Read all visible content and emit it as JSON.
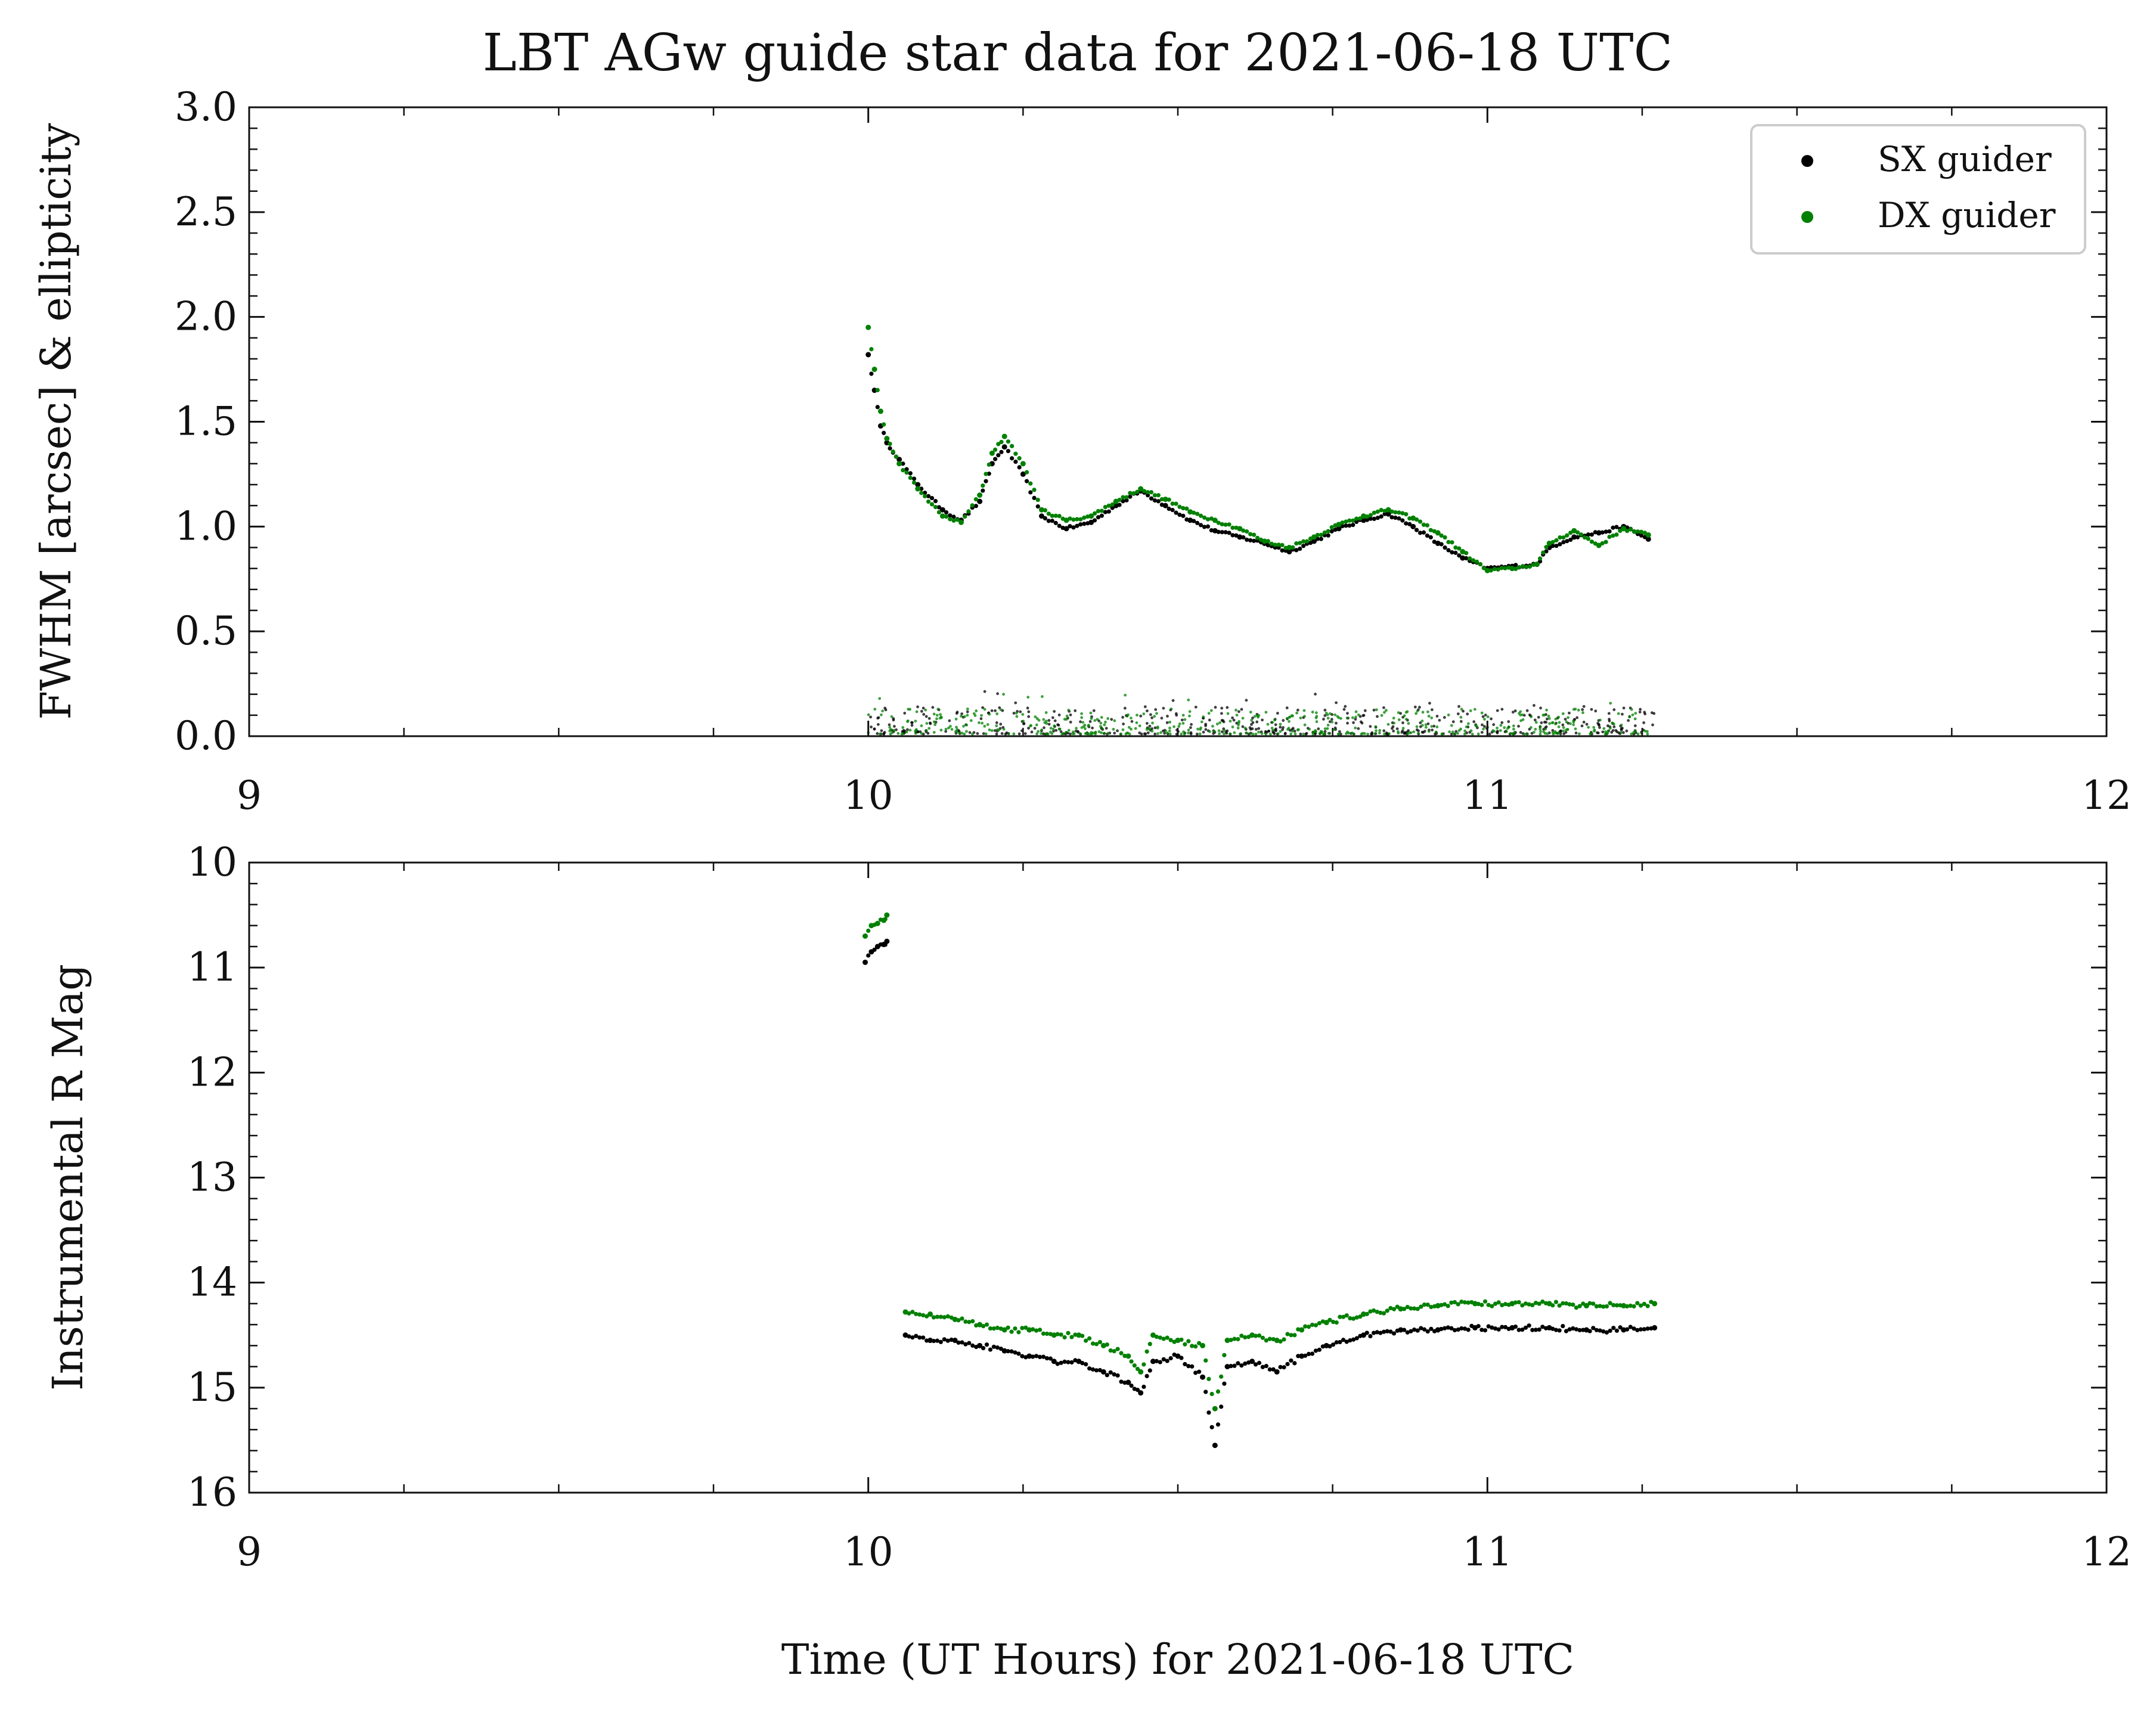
{
  "chart_data": [
    {
      "type": "scatter",
      "title": "LBT AGw guide star data for 2021-06-18 UTC",
      "ylabel": "FWHM [arcsec] & ellipticity",
      "xlim": [
        9,
        12
      ],
      "ylim": [
        0.0,
        3.0
      ],
      "xticks": [
        "9",
        "10",
        "11",
        "12"
      ],
      "yticks": [
        "0.0",
        "0.5",
        "1.0",
        "1.5",
        "2.0",
        "2.5",
        "3.0"
      ],
      "legend": {
        "placement": "top-right",
        "entries": [
          {
            "label": "SX guider",
            "color": "#000000"
          },
          {
            "label": "DX guider",
            "color": "#008000"
          }
        ]
      },
      "series": [
        {
          "name": "SX guider",
          "color": "#000000",
          "x": [
            10.0,
            10.01,
            10.02,
            10.03,
            10.05,
            10.08,
            10.12,
            10.15,
            10.18,
            10.2,
            10.22,
            10.25,
            10.28,
            10.32,
            10.36,
            10.4,
            10.44,
            10.48,
            10.52,
            10.56,
            10.6,
            10.64,
            10.68,
            10.72,
            10.76,
            10.8,
            10.84,
            10.88,
            10.92,
            10.96,
            11.0,
            11.04,
            11.08,
            11.1,
            11.14,
            11.18,
            11.22,
            11.26
          ],
          "y": [
            1.82,
            1.65,
            1.48,
            1.4,
            1.32,
            1.2,
            1.08,
            1.03,
            1.12,
            1.3,
            1.38,
            1.25,
            1.05,
            0.99,
            1.02,
            1.1,
            1.17,
            1.1,
            1.03,
            0.98,
            0.95,
            0.92,
            0.88,
            0.93,
            0.99,
            1.03,
            1.06,
            1.0,
            0.92,
            0.85,
            0.8,
            0.81,
            0.82,
            0.9,
            0.95,
            0.97,
            1.0,
            0.94
          ]
        },
        {
          "name": "DX guider",
          "color": "#008000",
          "x": [
            10.0,
            10.01,
            10.02,
            10.03,
            10.05,
            10.08,
            10.12,
            10.15,
            10.18,
            10.2,
            10.22,
            10.25,
            10.28,
            10.32,
            10.36,
            10.4,
            10.44,
            10.48,
            10.52,
            10.56,
            10.6,
            10.64,
            10.68,
            10.72,
            10.76,
            10.8,
            10.84,
            10.88,
            10.92,
            10.96,
            11.0,
            11.04,
            11.08,
            11.1,
            11.14,
            11.18,
            11.22,
            11.26
          ],
          "y": [
            1.95,
            1.75,
            1.55,
            1.42,
            1.3,
            1.18,
            1.05,
            1.02,
            1.15,
            1.35,
            1.43,
            1.3,
            1.08,
            1.03,
            1.05,
            1.12,
            1.18,
            1.13,
            1.07,
            1.03,
            0.99,
            0.93,
            0.9,
            0.95,
            1.01,
            1.05,
            1.08,
            1.04,
            0.97,
            0.88,
            0.79,
            0.8,
            0.82,
            0.92,
            0.98,
            0.91,
            0.99,
            0.96
          ]
        },
        {
          "name": "",
          "color": "#000000",
          "kind": "ellipticity",
          "x_range": [
            10.0,
            11.27
          ],
          "y_range": [
            0.0,
            0.22
          ]
        },
        {
          "name": "",
          "color": "#008000",
          "kind": "ellipticity",
          "x_range": [
            10.0,
            11.27
          ],
          "y_range": [
            0.0,
            0.2
          ]
        }
      ]
    },
    {
      "type": "scatter",
      "ylabel": "Instrumental R Mag",
      "xlabel": "Time (UT Hours) for 2021-06-18 UTC",
      "xlim": [
        9,
        12
      ],
      "ylim": [
        16,
        10
      ],
      "y_inverted": true,
      "xticks": [
        "9",
        "10",
        "11",
        "12"
      ],
      "yticks": [
        "10",
        "11",
        "12",
        "13",
        "14",
        "15",
        "16"
      ],
      "series": [
        {
          "name": "SX guider",
          "color": "#000000",
          "x": [
            9.995,
            10.005,
            10.015,
            10.025,
            10.03,
            10.06,
            10.1,
            10.14,
            10.18,
            10.22,
            10.26,
            10.3,
            10.34,
            10.38,
            10.42,
            10.44,
            10.46,
            10.5,
            10.54,
            10.56,
            10.58,
            10.62,
            10.66,
            10.7,
            10.74,
            10.8,
            10.86,
            10.92,
            10.98,
            11.04,
            11.1,
            11.16,
            11.22,
            11.27
          ],
          "y": [
            10.95,
            10.85,
            10.8,
            10.78,
            10.75,
            14.5,
            14.55,
            14.55,
            14.6,
            14.65,
            14.7,
            14.75,
            14.75,
            14.85,
            14.95,
            15.05,
            14.75,
            14.7,
            14.9,
            15.55,
            14.8,
            14.75,
            14.85,
            14.7,
            14.6,
            14.5,
            14.45,
            14.45,
            14.43,
            14.43,
            14.43,
            14.45,
            14.45,
            14.43
          ]
        },
        {
          "name": "DX guider",
          "color": "#008000",
          "x": [
            9.995,
            10.005,
            10.015,
            10.025,
            10.03,
            10.06,
            10.1,
            10.14,
            10.18,
            10.22,
            10.26,
            10.3,
            10.34,
            10.38,
            10.42,
            10.44,
            10.46,
            10.5,
            10.54,
            10.56,
            10.58,
            10.62,
            10.66,
            10.7,
            10.74,
            10.8,
            10.86,
            10.92,
            10.98,
            11.04,
            11.1,
            11.16,
            11.22,
            11.27
          ],
          "y": [
            10.7,
            10.6,
            10.58,
            10.55,
            10.5,
            14.28,
            14.3,
            14.35,
            14.4,
            14.45,
            14.45,
            14.5,
            14.5,
            14.6,
            14.7,
            14.85,
            14.5,
            14.55,
            14.6,
            15.2,
            14.55,
            14.5,
            14.55,
            14.45,
            14.38,
            14.3,
            14.25,
            14.22,
            14.2,
            14.2,
            14.2,
            14.22,
            14.22,
            14.2
          ]
        }
      ]
    }
  ]
}
